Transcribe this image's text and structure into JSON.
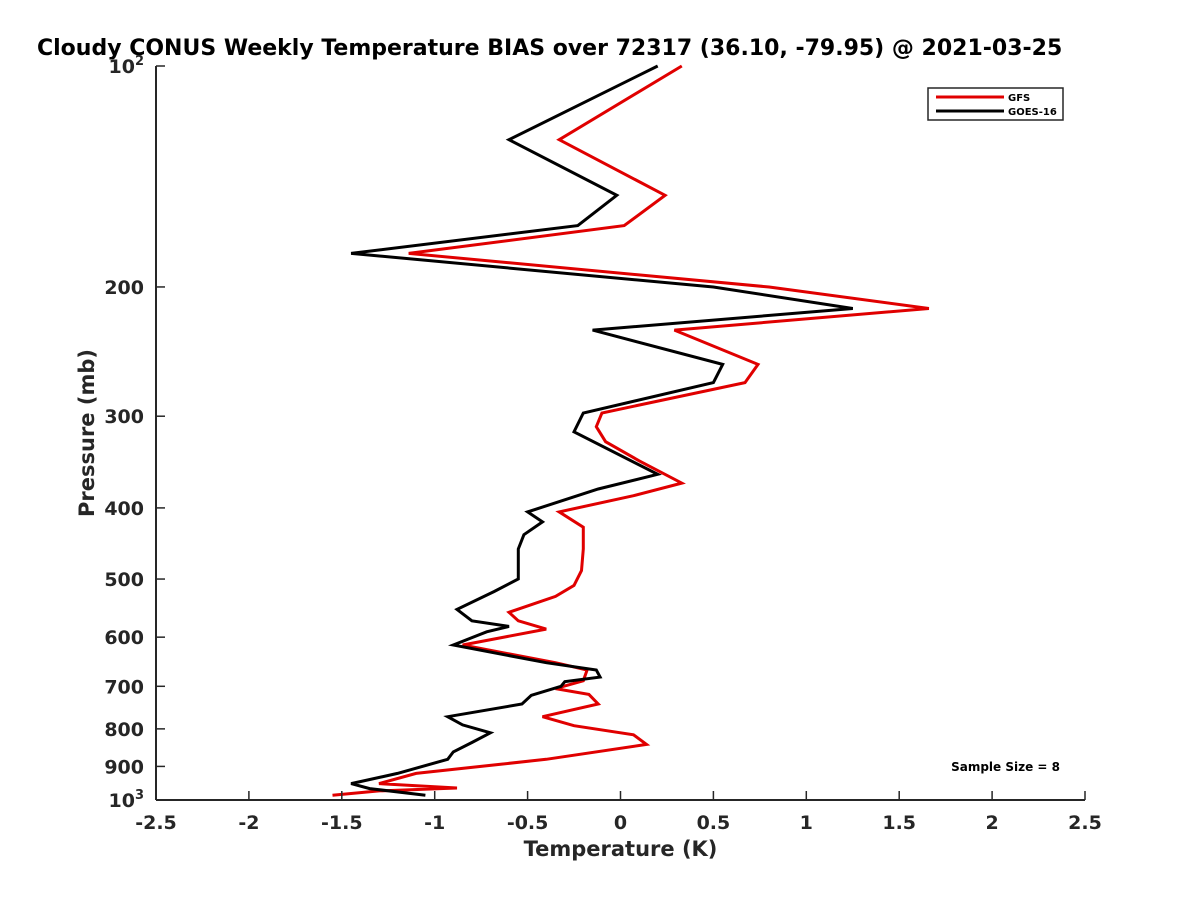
{
  "chart_data": {
    "type": "line",
    "title": "Cloudy CONUS Weekly Temperature BIAS over 72317 (36.10, -79.95) @ 2021-03-25",
    "xlabel": "Temperature (K)",
    "ylabel": "Pressure (mb)",
    "xlim": [
      -2.5,
      2.5
    ],
    "ylim": [
      100,
      1000
    ],
    "y_scale": "log",
    "y_reversed": true,
    "x_ticks": [
      -2.5,
      -2,
      -1.5,
      -1,
      -0.5,
      0,
      0.5,
      1,
      1.5,
      2,
      2.5
    ],
    "x_tick_labels": [
      "-2.5",
      "-2",
      "-1.5",
      "-1",
      "-0.5",
      "0",
      "0.5",
      "1",
      "1.5",
      "2",
      "2.5"
    ],
    "y_ticks": [
      {
        "value": 100,
        "base": "10",
        "exp": "2"
      },
      {
        "value": 200,
        "label": "200"
      },
      {
        "value": 300,
        "label": "300"
      },
      {
        "value": 400,
        "label": "400"
      },
      {
        "value": 500,
        "label": "500"
      },
      {
        "value": 600,
        "label": "600"
      },
      {
        "value": 700,
        "label": "700"
      },
      {
        "value": 800,
        "label": "800"
      },
      {
        "value": 900,
        "label": "900"
      },
      {
        "value": 1000,
        "base": "10",
        "exp": "3"
      }
    ],
    "grid": false,
    "legend_position": "top-right",
    "series": [
      {
        "name": "GFS",
        "color": "#e00000",
        "points": [
          [
            0.33,
            100
          ],
          [
            -0.33,
            126
          ],
          [
            0.24,
            150
          ],
          [
            0.02,
            165
          ],
          [
            -1.14,
            180
          ],
          [
            0.8,
            200
          ],
          [
            1.66,
            214
          ],
          [
            0.29,
            229
          ],
          [
            0.74,
            255
          ],
          [
            0.67,
            270
          ],
          [
            -0.1,
            297
          ],
          [
            -0.13,
            310
          ],
          [
            -0.08,
            325
          ],
          [
            0.1,
            345
          ],
          [
            0.33,
            370
          ],
          [
            0.07,
            385
          ],
          [
            -0.33,
            405
          ],
          [
            -0.2,
            425
          ],
          [
            -0.2,
            455
          ],
          [
            -0.21,
            487
          ],
          [
            -0.25,
            510
          ],
          [
            -0.35,
            528
          ],
          [
            -0.6,
            555
          ],
          [
            -0.55,
            570
          ],
          [
            -0.4,
            585
          ],
          [
            -0.85,
            615
          ],
          [
            -0.35,
            650
          ],
          [
            -0.18,
            665
          ],
          [
            -0.2,
            688
          ],
          [
            -0.35,
            705
          ],
          [
            -0.17,
            718
          ],
          [
            -0.12,
            740
          ],
          [
            -0.42,
            770
          ],
          [
            -0.25,
            792
          ],
          [
            0.07,
            815
          ],
          [
            0.14,
            840
          ],
          [
            -0.4,
            880
          ],
          [
            -1.1,
            920
          ],
          [
            -1.3,
            950
          ],
          [
            -0.88,
            963
          ],
          [
            -1.3,
            972
          ],
          [
            -1.55,
            985
          ]
        ]
      },
      {
        "name": "GOES-16",
        "color": "#000000",
        "points": [
          [
            0.2,
            100
          ],
          [
            -0.6,
            126
          ],
          [
            -0.02,
            150
          ],
          [
            -0.23,
            165
          ],
          [
            -1.45,
            180
          ],
          [
            0.5,
            200
          ],
          [
            1.25,
            214
          ],
          [
            -0.15,
            229
          ],
          [
            0.55,
            255
          ],
          [
            0.5,
            270
          ],
          [
            -0.2,
            297
          ],
          [
            -0.25,
            315
          ],
          [
            0.2,
            360
          ],
          [
            -0.12,
            377
          ],
          [
            -0.5,
            405
          ],
          [
            -0.42,
            418
          ],
          [
            -0.52,
            435
          ],
          [
            -0.55,
            455
          ],
          [
            -0.55,
            470
          ],
          [
            -0.55,
            485
          ],
          [
            -0.55,
            500
          ],
          [
            -0.68,
            520
          ],
          [
            -0.88,
            550
          ],
          [
            -0.8,
            570
          ],
          [
            -0.6,
            580
          ],
          [
            -0.72,
            590
          ],
          [
            -0.9,
            615
          ],
          [
            -0.4,
            650
          ],
          [
            -0.13,
            665
          ],
          [
            -0.11,
            680
          ],
          [
            -0.3,
            690
          ],
          [
            -0.32,
            700
          ],
          [
            -0.48,
            720
          ],
          [
            -0.53,
            740
          ],
          [
            -0.93,
            770
          ],
          [
            -0.85,
            790
          ],
          [
            -0.7,
            810
          ],
          [
            -0.8,
            835
          ],
          [
            -0.9,
            860
          ],
          [
            -0.93,
            880
          ],
          [
            -1.2,
            920
          ],
          [
            -1.45,
            950
          ],
          [
            -1.35,
            965
          ],
          [
            -1.05,
            985
          ]
        ]
      }
    ],
    "annotation": "Sample Size = 8"
  }
}
